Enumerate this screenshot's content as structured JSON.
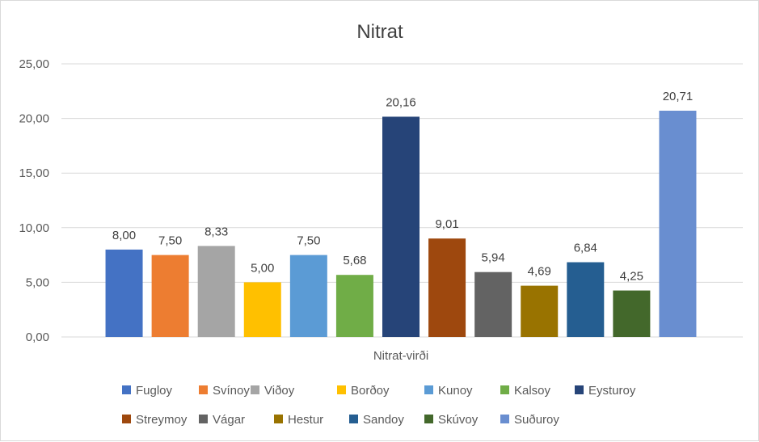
{
  "chart_data": {
    "type": "bar",
    "title": "Nitrat",
    "xlabel": "Nitrat-virði",
    "ylabel": "",
    "ylim": [
      0,
      25
    ],
    "yticks": [
      "0,00",
      "5,00",
      "10,00",
      "15,00",
      "20,00",
      "25,00"
    ],
    "grid": true,
    "legend_position": "bottom",
    "series": [
      {
        "name": "Fugloy",
        "value": 8.0,
        "label": "8,00",
        "color": "#4472C4"
      },
      {
        "name": "Svínoy",
        "value": 7.5,
        "label": "7,50",
        "color": "#ED7D31"
      },
      {
        "name": "Viðoy",
        "value": 8.33,
        "label": "8,33",
        "color": "#A5A5A5"
      },
      {
        "name": "Borðoy",
        "value": 5.0,
        "label": "5,00",
        "color": "#FFC000"
      },
      {
        "name": "Kunoy",
        "value": 7.5,
        "label": "7,50",
        "color": "#5B9BD5"
      },
      {
        "name": "Kalsoy",
        "value": 5.68,
        "label": "5,68",
        "color": "#70AD47"
      },
      {
        "name": "Eysturoy",
        "value": 20.16,
        "label": "20,16",
        "color": "#264478"
      },
      {
        "name": "Streymoy",
        "value": 9.01,
        "label": "9,01",
        "color": "#9E480E"
      },
      {
        "name": "Vágar",
        "value": 5.94,
        "label": "5,94",
        "color": "#636363"
      },
      {
        "name": "Hestur",
        "value": 4.69,
        "label": "4,69",
        "color": "#997300"
      },
      {
        "name": "Sandoy",
        "value": 6.84,
        "label": "6,84",
        "color": "#255E91"
      },
      {
        "name": "Skúvoy",
        "value": 4.25,
        "label": "4,25",
        "color": "#43682B"
      },
      {
        "name": "Suðuroy",
        "value": 20.71,
        "label": "20,71",
        "color": "#698ED0"
      }
    ]
  }
}
